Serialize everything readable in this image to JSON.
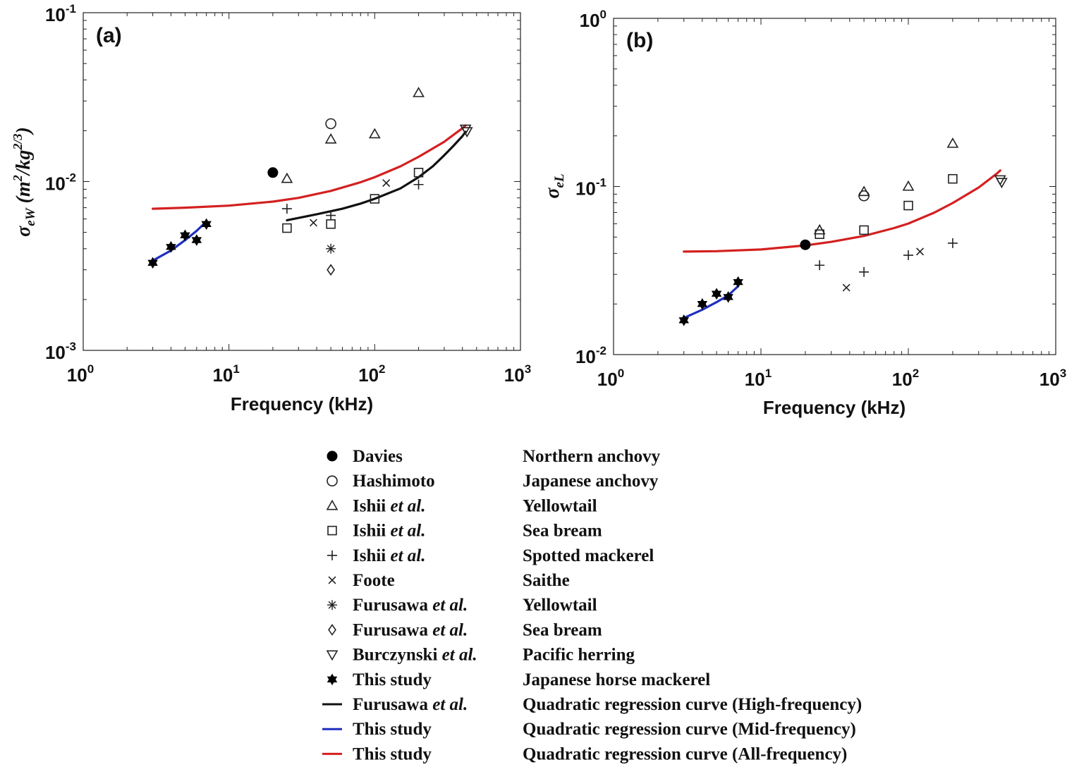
{
  "chart_data": [
    {
      "type": "scatter",
      "panel_label": "(a)",
      "xlabel": "Frequency (kHz)",
      "ylabel": {
        "symbol": "σ",
        "subscript": "eW",
        "units_open": " (m",
        "units_sup": "2",
        "units_mid": "/kg",
        "units_sup2": "2/3",
        "units_close": ")"
      },
      "xscale": "log",
      "yscale": "log",
      "xlim": [
        1,
        1000
      ],
      "ylim": [
        0.001,
        0.1
      ],
      "xticks": [
        {
          "base": "10",
          "exp": "0"
        },
        {
          "base": "10",
          "exp": "1"
        },
        {
          "base": "10",
          "exp": "2"
        },
        {
          "base": "10",
          "exp": "3"
        }
      ],
      "yticks": [
        {
          "base": "10",
          "exp": "-3"
        },
        {
          "base": "10",
          "exp": "-2"
        },
        {
          "base": "10",
          "exp": "-1"
        }
      ],
      "series": [
        {
          "name": "Davies",
          "marker": "filled-circle",
          "points": [
            [
              20,
              0.0113
            ]
          ]
        },
        {
          "name": "Hashimoto",
          "marker": "circle",
          "points": [
            [
              50,
              0.022
            ]
          ]
        },
        {
          "name": "Ishii et al. (Yellowtail)",
          "marker": "triangle-up",
          "points": [
            [
              25,
              0.0104
            ],
            [
              50,
              0.0178
            ],
            [
              100,
              0.0191
            ],
            [
              200,
              0.0335
            ]
          ]
        },
        {
          "name": "Ishii et al. (Sea bream)",
          "marker": "square",
          "points": [
            [
              25,
              0.0053
            ],
            [
              50,
              0.0056
            ],
            [
              100,
              0.0079
            ],
            [
              200,
              0.0113
            ]
          ]
        },
        {
          "name": "Ishii et al. (Spotted mackerel)",
          "marker": "plus",
          "points": [
            [
              25,
              0.0069
            ],
            [
              50,
              0.0063
            ],
            [
              200,
              0.0096
            ]
          ]
        },
        {
          "name": "Foote",
          "marker": "x",
          "points": [
            [
              38,
              0.0057
            ],
            [
              120,
              0.0098
            ]
          ]
        },
        {
          "name": "Furusawa et al. (Yellowtail)",
          "marker": "asterisk",
          "points": [
            [
              50,
              0.004
            ]
          ]
        },
        {
          "name": "Furusawa et al. (Sea bream)",
          "marker": "diamond",
          "points": [
            [
              50,
              0.003
            ]
          ]
        },
        {
          "name": "Burczynski et al.",
          "marker": "triangle-down",
          "points": [
            [
              420,
              0.0205
            ],
            [
              430,
              0.0198
            ]
          ]
        },
        {
          "name": "This study",
          "marker": "hexagram",
          "points": [
            [
              3,
              0.0033
            ],
            [
              4,
              0.0041
            ],
            [
              5,
              0.0048
            ],
            [
              6,
              0.0045
            ],
            [
              7,
              0.0056
            ]
          ]
        }
      ],
      "curves": [
        {
          "name": "Furusawa et al. (High-frequency)",
          "color": "#111111",
          "x": [
            25,
            40,
            60,
            80,
            100,
            150,
            200,
            250,
            300,
            350,
            400,
            420
          ],
          "y": [
            0.0059,
            0.0064,
            0.0069,
            0.0074,
            0.0079,
            0.0091,
            0.0106,
            0.0123,
            0.0143,
            0.0164,
            0.0186,
            0.0197
          ]
        },
        {
          "name": "This study (Mid-frequency)",
          "color": "#1f2fbf",
          "x": [
            3,
            4,
            5,
            6,
            7
          ],
          "y": [
            0.0034,
            0.0039,
            0.0045,
            0.0051,
            0.0058
          ]
        },
        {
          "name": "This study (All-frequency)",
          "color": "#d42020",
          "x": [
            3,
            5,
            10,
            20,
            30,
            50,
            80,
            100,
            150,
            200,
            300,
            400,
            420
          ],
          "y": [
            0.0069,
            0.007,
            0.0072,
            0.0076,
            0.008,
            0.0088,
            0.0099,
            0.0106,
            0.0123,
            0.014,
            0.0172,
            0.0207,
            0.0215
          ]
        }
      ]
    },
    {
      "type": "scatter",
      "panel_label": "(b)",
      "xlabel": "Frequency (kHz)",
      "ylabel": {
        "symbol": "σ",
        "subscript": "eL"
      },
      "xscale": "log",
      "yscale": "log",
      "xlim": [
        1,
        1000
      ],
      "ylim": [
        0.01,
        1
      ],
      "xticks": [
        {
          "base": "10",
          "exp": "0"
        },
        {
          "base": "10",
          "exp": "1"
        },
        {
          "base": "10",
          "exp": "2"
        },
        {
          "base": "10",
          "exp": "3"
        }
      ],
      "yticks": [
        {
          "base": "10",
          "exp": "-2"
        },
        {
          "base": "10",
          "exp": "-1"
        },
        {
          "base": "10",
          "exp": "0"
        }
      ],
      "series": [
        {
          "name": "Davies",
          "marker": "filled-circle",
          "points": [
            [
              20,
              0.045
            ]
          ]
        },
        {
          "name": "Hashimoto",
          "marker": "circle",
          "points": [
            [
              50,
              0.088
            ]
          ]
        },
        {
          "name": "Ishii et al. (Yellowtail)",
          "marker": "triangle-up",
          "points": [
            [
              25,
              0.055
            ],
            [
              50,
              0.093
            ],
            [
              100,
              0.1
            ],
            [
              200,
              0.18
            ]
          ]
        },
        {
          "name": "Ishii et al. (Sea bream)",
          "marker": "square",
          "points": [
            [
              25,
              0.052
            ],
            [
              50,
              0.055
            ],
            [
              100,
              0.077
            ],
            [
              200,
              0.111
            ]
          ]
        },
        {
          "name": "Ishii et al. (Spotted mackerel)",
          "marker": "plus",
          "points": [
            [
              25,
              0.034
            ],
            [
              50,
              0.031
            ],
            [
              100,
              0.039
            ],
            [
              200,
              0.046
            ]
          ]
        },
        {
          "name": "Foote",
          "marker": "x",
          "points": [
            [
              38,
              0.025
            ],
            [
              120,
              0.041
            ]
          ]
        },
        {
          "name": "Burczynski et al.",
          "marker": "triangle-down",
          "points": [
            [
              420,
              0.11
            ],
            [
              430,
              0.106
            ]
          ]
        },
        {
          "name": "This study",
          "marker": "hexagram",
          "points": [
            [
              3,
              0.016
            ],
            [
              4,
              0.02
            ],
            [
              5,
              0.023
            ],
            [
              6,
              0.022
            ],
            [
              7,
              0.027
            ]
          ]
        }
      ],
      "curves": [
        {
          "name": "This study (Mid-frequency)",
          "color": "#1f2fbf",
          "x": [
            3,
            4,
            5,
            6,
            7
          ],
          "y": [
            0.0165,
            0.0185,
            0.0205,
            0.0225,
            0.0255
          ]
        },
        {
          "name": "This study (All-frequency)",
          "color": "#d42020",
          "x": [
            3,
            5,
            10,
            20,
            30,
            50,
            80,
            100,
            150,
            200,
            300,
            400,
            420
          ],
          "y": [
            0.041,
            0.0412,
            0.0422,
            0.0446,
            0.0468,
            0.0508,
            0.0566,
            0.0602,
            0.0699,
            0.0797,
            0.0986,
            0.1195,
            0.1245
          ]
        }
      ]
    }
  ],
  "legend": [
    {
      "marker": "filled-circle",
      "author": "Davies",
      "etal": "",
      "species": "Northern anchovy"
    },
    {
      "marker": "circle",
      "author": "Hashimoto",
      "etal": "",
      "species": "Japanese anchovy"
    },
    {
      "marker": "triangle-up",
      "author": "Ishii",
      "etal": "et al.",
      "species": "Yellowtail"
    },
    {
      "marker": "square",
      "author": "Ishii",
      "etal": "et al.",
      "species": "Sea bream"
    },
    {
      "marker": "plus",
      "author": "Ishii",
      "etal": "et al.",
      "species": "Spotted mackerel"
    },
    {
      "marker": "x",
      "author": "Foote",
      "etal": "",
      "species": "Saithe"
    },
    {
      "marker": "asterisk",
      "author": "Furusawa",
      "etal": "et al.",
      "species": "Yellowtail"
    },
    {
      "marker": "diamond",
      "author": "Furusawa",
      "etal": "et al.",
      "species": "Sea bream"
    },
    {
      "marker": "triangle-down",
      "author": "Burczynski",
      "etal": "et al.",
      "species": "Pacific herring"
    },
    {
      "marker": "hexagram",
      "author": "This study",
      "etal": "",
      "species": "Japanese horse mackerel"
    },
    {
      "marker": "line",
      "color": "#111111",
      "author": "Furusawa",
      "etal": "et al.",
      "species": "Quadratic regression curve (High-frequency)"
    },
    {
      "marker": "line",
      "color": "#1f2fbf",
      "author": "This study",
      "etal": "",
      "species": "Quadratic regression curve (Mid-frequency)"
    },
    {
      "marker": "line",
      "color": "#d42020",
      "author": "This study",
      "etal": "",
      "species": "Quadratic regression curve (All-frequency)"
    }
  ]
}
